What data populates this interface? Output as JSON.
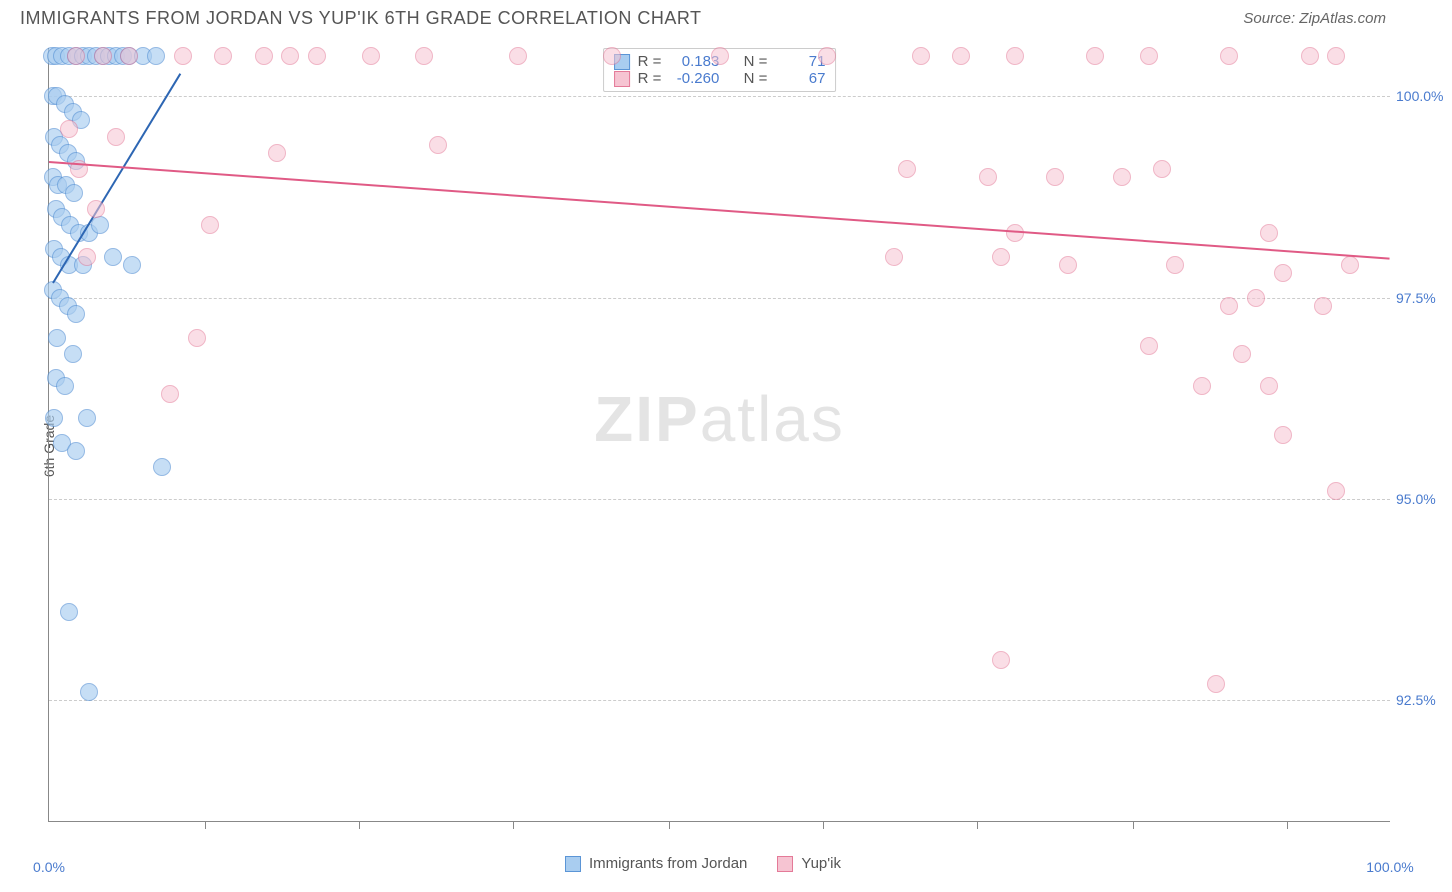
{
  "header": {
    "title": "IMMIGRANTS FROM JORDAN VS YUP'IK 6TH GRADE CORRELATION CHART",
    "source_prefix": "Source: ",
    "source_name": "ZipAtlas.com"
  },
  "watermark": {
    "part1": "ZIP",
    "part2": "atlas"
  },
  "chart": {
    "type": "scatter",
    "ylabel": "6th Grade",
    "background_color": "#ffffff",
    "grid_color": "#cccccc",
    "axis_color": "#888888",
    "tick_label_color": "#4a7bce",
    "x": {
      "min": 0,
      "max": 100,
      "label_min": "0.0%",
      "label_max": "100.0%",
      "tick_positions": [
        11.6,
        23.1,
        34.6,
        46.2,
        57.7,
        69.2,
        80.8,
        92.3
      ]
    },
    "y": {
      "min": 91.0,
      "max": 100.6,
      "ticks": [
        {
          "v": 92.5,
          "label": "92.5%"
        },
        {
          "v": 95.0,
          "label": "95.0%"
        },
        {
          "v": 97.5,
          "label": "97.5%"
        },
        {
          "v": 100.0,
          "label": "100.0%"
        }
      ]
    },
    "series": [
      {
        "id": "jordan",
        "name": "Immigrants from Jordan",
        "fill": "#a9cdf0",
        "stroke": "#5b95d6",
        "marker_radius": 9,
        "opacity": 0.65,
        "R": "0.183",
        "N": "71",
        "trend": {
          "x1": 0.3,
          "y1": 97.7,
          "x2": 9.8,
          "y2": 100.3,
          "color": "#2d66b3",
          "width": 2
        },
        "points": [
          [
            0.2,
            100.5
          ],
          [
            0.5,
            100.5
          ],
          [
            1.0,
            100.5
          ],
          [
            1.5,
            100.5
          ],
          [
            2.0,
            100.5
          ],
          [
            2.5,
            100.5
          ],
          [
            3.0,
            100.5
          ],
          [
            3.5,
            100.5
          ],
          [
            4.0,
            100.5
          ],
          [
            4.5,
            100.5
          ],
          [
            5.0,
            100.5
          ],
          [
            5.5,
            100.5
          ],
          [
            6.0,
            100.5
          ],
          [
            7.0,
            100.5
          ],
          [
            8.0,
            100.5
          ],
          [
            0.3,
            100.0
          ],
          [
            0.6,
            100.0
          ],
          [
            1.2,
            99.9
          ],
          [
            1.8,
            99.8
          ],
          [
            2.4,
            99.7
          ],
          [
            0.4,
            99.5
          ],
          [
            0.8,
            99.4
          ],
          [
            1.4,
            99.3
          ],
          [
            2.0,
            99.2
          ],
          [
            0.3,
            99.0
          ],
          [
            0.7,
            98.9
          ],
          [
            1.3,
            98.9
          ],
          [
            1.9,
            98.8
          ],
          [
            0.5,
            98.6
          ],
          [
            1.0,
            98.5
          ],
          [
            1.6,
            98.4
          ],
          [
            2.2,
            98.3
          ],
          [
            3.0,
            98.3
          ],
          [
            3.8,
            98.4
          ],
          [
            0.4,
            98.1
          ],
          [
            0.9,
            98.0
          ],
          [
            1.5,
            97.9
          ],
          [
            2.5,
            97.9
          ],
          [
            4.8,
            98.0
          ],
          [
            6.2,
            97.9
          ],
          [
            0.3,
            97.6
          ],
          [
            0.8,
            97.5
          ],
          [
            1.4,
            97.4
          ],
          [
            2.0,
            97.3
          ],
          [
            0.6,
            97.0
          ],
          [
            1.8,
            96.8
          ],
          [
            0.5,
            96.5
          ],
          [
            1.2,
            96.4
          ],
          [
            0.4,
            96.0
          ],
          [
            2.8,
            96.0
          ],
          [
            1.0,
            95.7
          ],
          [
            2.0,
            95.6
          ],
          [
            8.4,
            95.4
          ],
          [
            1.5,
            93.6
          ],
          [
            3.0,
            92.6
          ]
        ]
      },
      {
        "id": "yupik",
        "name": "Yup'ik",
        "fill": "#f6c4d2",
        "stroke": "#e47a98",
        "marker_radius": 9,
        "opacity": 0.55,
        "R": "-0.260",
        "N": "67",
        "trend": {
          "x1": 0,
          "y1": 99.2,
          "x2": 100,
          "y2": 98.0,
          "color": "#e05a85",
          "width": 2
        },
        "points": [
          [
            2,
            100.5
          ],
          [
            4,
            100.5
          ],
          [
            6,
            100.5
          ],
          [
            10,
            100.5
          ],
          [
            13,
            100.5
          ],
          [
            16,
            100.5
          ],
          [
            18,
            100.5
          ],
          [
            20,
            100.5
          ],
          [
            24,
            100.5
          ],
          [
            28,
            100.5
          ],
          [
            35,
            100.5
          ],
          [
            42,
            100.5
          ],
          [
            50,
            100.5
          ],
          [
            58,
            100.5
          ],
          [
            65,
            100.5
          ],
          [
            68,
            100.5
          ],
          [
            72,
            100.5
          ],
          [
            78,
            100.5
          ],
          [
            82,
            100.5
          ],
          [
            88,
            100.5
          ],
          [
            94,
            100.5
          ],
          [
            96,
            100.5
          ],
          [
            1.5,
            99.6
          ],
          [
            5,
            99.5
          ],
          [
            17,
            99.3
          ],
          [
            29,
            99.4
          ],
          [
            2.2,
            99.1
          ],
          [
            64,
            99.1
          ],
          [
            70,
            99.0
          ],
          [
            75,
            99.0
          ],
          [
            80,
            99.0
          ],
          [
            83,
            99.1
          ],
          [
            3.5,
            98.6
          ],
          [
            12,
            98.4
          ],
          [
            72,
            98.3
          ],
          [
            91,
            98.3
          ],
          [
            2.8,
            98.0
          ],
          [
            63,
            98.0
          ],
          [
            71,
            98.0
          ],
          [
            76,
            97.9
          ],
          [
            84,
            97.9
          ],
          [
            92,
            97.8
          ],
          [
            97,
            97.9
          ],
          [
            90,
            97.5
          ],
          [
            95,
            97.4
          ],
          [
            88,
            97.4
          ],
          [
            11,
            97.0
          ],
          [
            82,
            96.9
          ],
          [
            89,
            96.8
          ],
          [
            9,
            96.3
          ],
          [
            86,
            96.4
          ],
          [
            91,
            96.4
          ],
          [
            92,
            95.8
          ],
          [
            96,
            95.1
          ],
          [
            71,
            93.0
          ],
          [
            87,
            92.7
          ]
        ]
      }
    ]
  },
  "legend_top": {
    "R_label": "R =",
    "N_label": "N ="
  },
  "legend_bottom": {}
}
